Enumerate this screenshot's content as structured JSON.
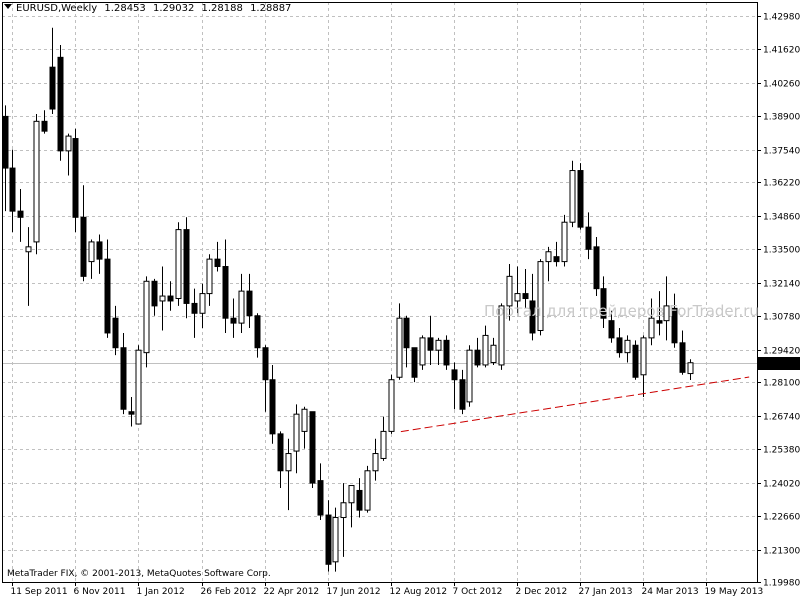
{
  "header": {
    "symbol": "EURUSD,Weekly",
    "open": "1.28453",
    "high": "1.29032",
    "low": "1.28188",
    "close": "1.28887"
  },
  "watermark": "Портал для трейдеров ForTrader.ru",
  "copyright": "MetaTrader FIX, © 2001-2013, MetaQuotes Software Corp.",
  "current_price_label": "1.28887",
  "colors": {
    "background": "#ffffff",
    "grid": "#c0c0c0",
    "candle_bear": "#000000",
    "candle_bull": "#ffffff",
    "candle_outline": "#000000",
    "trendline": "#cc0000",
    "price_line": "#c0c0c0",
    "price_tag_bg": "#000000",
    "price_tag_fg": "#ffffff"
  },
  "chart_data": {
    "type": "candlestick",
    "title": "EURUSD,Weekly",
    "ylim": [
      1.1974,
      1.4334
    ],
    "y_ticks": [
      "1.42980",
      "1.41620",
      "1.40260",
      "1.38900",
      "1.37540",
      "1.36220",
      "1.34860",
      "1.33500",
      "1.32140",
      "1.30780",
      "1.29420",
      "1.28100",
      "1.26740",
      "1.25380",
      "1.24020",
      "1.22660",
      "1.21300",
      "1.19980"
    ],
    "x_ticks": [
      {
        "label": "11 Sep 2011",
        "bar": 1
      },
      {
        "label": "6 Nov 2011",
        "bar": 9
      },
      {
        "label": "1 Jan 2012",
        "bar": 17
      },
      {
        "label": "26 Feb 2012",
        "bar": 25
      },
      {
        "label": "22 Apr 2012",
        "bar": 33
      },
      {
        "label": "17 Jun 2012",
        "bar": 41
      },
      {
        "label": "12 Aug 2012",
        "bar": 49
      },
      {
        "label": "7 Oct 2012",
        "bar": 57
      },
      {
        "label": "2 Dec 2012",
        "bar": 65
      },
      {
        "label": "27 Jan 2013",
        "bar": 73
      },
      {
        "label": "24 Mar 2013",
        "bar": 81
      },
      {
        "label": "19 May 2013",
        "bar": 89
      }
    ],
    "grid": true,
    "current_price": 1.28887,
    "trendline": {
      "from": [
        50.3,
        1.2609
      ],
      "to": [
        94.5,
        1.2831
      ],
      "style": "dashed"
    },
    "candles": [
      [
        1.389,
        1.3935,
        1.3505,
        1.368
      ],
      [
        1.368,
        1.3755,
        1.342,
        1.3505
      ],
      [
        1.3505,
        1.3595,
        1.338,
        1.348
      ],
      [
        1.334,
        1.344,
        1.312,
        1.336
      ],
      [
        1.338,
        1.39,
        1.333,
        1.387
      ],
      [
        1.387,
        1.3915,
        1.382,
        1.383
      ],
      [
        1.409,
        1.425,
        1.39,
        1.392
      ],
      [
        1.413,
        1.418,
        1.371,
        1.375
      ],
      [
        1.375,
        1.382,
        1.365,
        1.381
      ],
      [
        1.38,
        1.384,
        1.342,
        1.348
      ],
      [
        1.348,
        1.361,
        1.322,
        1.324
      ],
      [
        1.33,
        1.339,
        1.323,
        1.338
      ],
      [
        1.338,
        1.341,
        1.325,
        1.331
      ],
      [
        1.331,
        1.339,
        1.299,
        1.301
      ],
      [
        1.307,
        1.312,
        1.292,
        1.295
      ],
      [
        1.295,
        1.301,
        1.268,
        1.27
      ],
      [
        1.269,
        1.275,
        1.263,
        1.268
      ],
      [
        1.264,
        1.296,
        1.264,
        1.294
      ],
      [
        1.293,
        1.324,
        1.287,
        1.322
      ],
      [
        1.322,
        1.323,
        1.308,
        1.312
      ],
      [
        1.314,
        1.328,
        1.302,
        1.316
      ],
      [
        1.316,
        1.322,
        1.31,
        1.314
      ],
      [
        1.315,
        1.346,
        1.312,
        1.343
      ],
      [
        1.343,
        1.348,
        1.307,
        1.313
      ],
      [
        1.313,
        1.319,
        1.299,
        1.309
      ],
      [
        1.309,
        1.321,
        1.303,
        1.317
      ],
      [
        1.317,
        1.333,
        1.312,
        1.331
      ],
      [
        1.331,
        1.338,
        1.326,
        1.328
      ],
      [
        1.328,
        1.339,
        1.301,
        1.307
      ],
      [
        1.307,
        1.315,
        1.299,
        1.305
      ],
      [
        1.305,
        1.325,
        1.301,
        1.318
      ],
      [
        1.318,
        1.325,
        1.303,
        1.308
      ],
      [
        1.308,
        1.309,
        1.291,
        1.295
      ],
      [
        1.295,
        1.296,
        1.269,
        1.282
      ],
      [
        1.282,
        1.288,
        1.256,
        1.26
      ],
      [
        1.26,
        1.261,
        1.238,
        1.245
      ],
      [
        1.245,
        1.258,
        1.229,
        1.252
      ],
      [
        1.253,
        1.272,
        1.244,
        1.268
      ],
      [
        1.261,
        1.271,
        1.254,
        1.27
      ],
      [
        1.269,
        1.269,
        1.238,
        1.24
      ],
      [
        1.241,
        1.248,
        1.225,
        1.227
      ],
      [
        1.227,
        1.233,
        1.204,
        1.207
      ],
      [
        1.208,
        1.23,
        1.204,
        1.226
      ],
      [
        1.226,
        1.24,
        1.21,
        1.232
      ],
      [
        1.232,
        1.239,
        1.222,
        1.239
      ],
      [
        1.237,
        1.242,
        1.226,
        1.229
      ],
      [
        1.229,
        1.247,
        1.228,
        1.245
      ],
      [
        1.245,
        1.258,
        1.241,
        1.252
      ],
      [
        1.25,
        1.267,
        1.249,
        1.261
      ],
      [
        1.261,
        1.284,
        1.26,
        1.282
      ],
      [
        1.283,
        1.313,
        1.282,
        1.307
      ],
      [
        1.307,
        1.308,
        1.287,
        1.295
      ],
      [
        1.295,
        1.295,
        1.281,
        1.283
      ],
      [
        1.288,
        1.3,
        1.286,
        1.299
      ],
      [
        1.299,
        1.308,
        1.288,
        1.294
      ],
      [
        1.294,
        1.299,
        1.288,
        1.298
      ],
      [
        1.298,
        1.3,
        1.286,
        1.288
      ],
      [
        1.286,
        1.289,
        1.27,
        1.282
      ],
      [
        1.282,
        1.286,
        1.268,
        1.27
      ],
      [
        1.273,
        1.296,
        1.271,
        1.294
      ],
      [
        1.294,
        1.299,
        1.287,
        1.288
      ],
      [
        1.288,
        1.304,
        1.287,
        1.3
      ],
      [
        1.289,
        1.299,
        1.288,
        1.296
      ],
      [
        1.288,
        1.313,
        1.286,
        1.312
      ],
      [
        1.312,
        1.329,
        1.306,
        1.324
      ],
      [
        1.314,
        1.328,
        1.309,
        1.317
      ],
      [
        1.317,
        1.327,
        1.311,
        1.315
      ],
      [
        1.314,
        1.325,
        1.298,
        1.301
      ],
      [
        1.302,
        1.331,
        1.3,
        1.33
      ],
      [
        1.33,
        1.336,
        1.322,
        1.334
      ],
      [
        1.332,
        1.338,
        1.328,
        1.33
      ],
      [
        1.33,
        1.349,
        1.328,
        1.346
      ],
      [
        1.346,
        1.371,
        1.344,
        1.367
      ],
      [
        1.367,
        1.37,
        1.343,
        1.344
      ],
      [
        1.344,
        1.35,
        1.331,
        1.335
      ],
      [
        1.336,
        1.34,
        1.316,
        1.319
      ],
      [
        1.319,
        1.324,
        1.303,
        1.307
      ],
      [
        1.306,
        1.31,
        1.297,
        1.299
      ],
      [
        1.299,
        1.303,
        1.291,
        1.293
      ],
      [
        1.293,
        1.3,
        1.289,
        1.298
      ],
      [
        1.296,
        1.298,
        1.282,
        1.283
      ],
      [
        1.284,
        1.3,
        1.275,
        1.299
      ],
      [
        1.299,
        1.315,
        1.296,
        1.307
      ],
      [
        1.306,
        1.318,
        1.3,
        1.305
      ],
      [
        1.306,
        1.324,
        1.298,
        1.312
      ],
      [
        1.311,
        1.317,
        1.295,
        1.297
      ],
      [
        1.297,
        1.302,
        1.284,
        1.285
      ],
      [
        1.2845,
        1.2903,
        1.2819,
        1.2889
      ]
    ]
  }
}
